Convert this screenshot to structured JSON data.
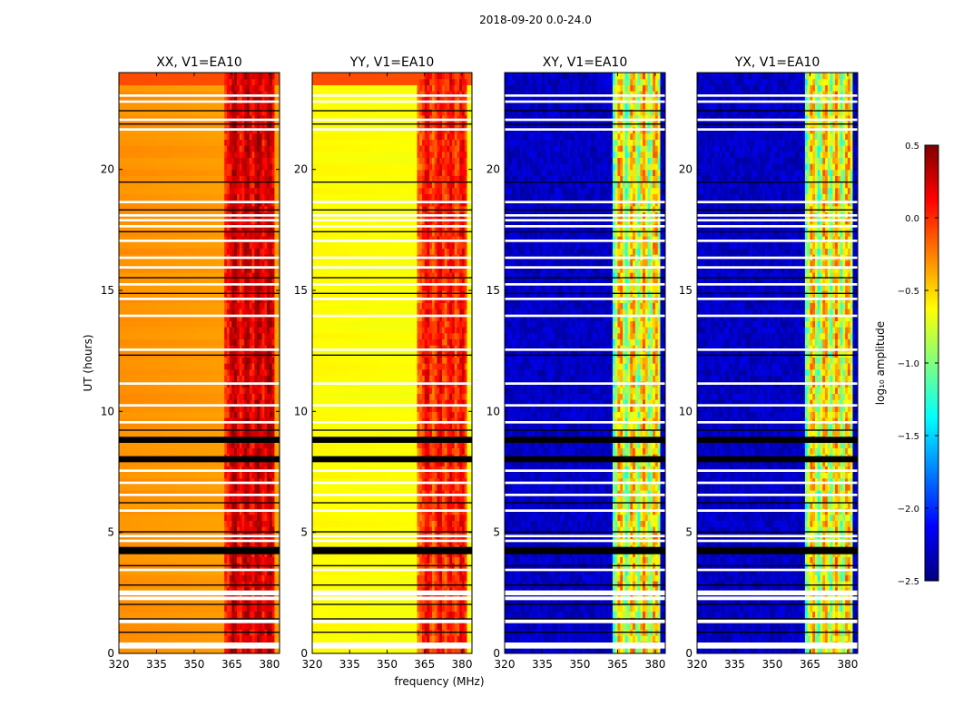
{
  "figure": {
    "suptitle": "2018-09-20 0.0-24.0",
    "xlabel": "frequency (MHz)",
    "ylabel": "UT (hours)"
  },
  "chart_data": [
    {
      "type": "heatmap",
      "title": "XX, V1=EA10",
      "style": "parallel",
      "x_ticks": [
        "320",
        "335",
        "350",
        "365",
        "380"
      ],
      "x_tick_values": [
        320,
        335,
        350,
        365,
        380
      ],
      "xlim": [
        320,
        384
      ],
      "y_ticks": [
        "0",
        "5",
        "10",
        "15",
        "20"
      ],
      "y_tick_values": [
        0,
        5,
        10,
        15,
        20
      ],
      "ylim": [
        0,
        24
      ]
    },
    {
      "type": "heatmap",
      "title": "YY, V1=EA10",
      "style": "parallel",
      "x_ticks": [
        "320",
        "335",
        "350",
        "365",
        "380"
      ],
      "x_tick_values": [
        320,
        335,
        350,
        365,
        380
      ],
      "xlim": [
        320,
        384
      ],
      "y_ticks": [
        "0",
        "5",
        "10",
        "15",
        "20"
      ],
      "y_tick_values": [
        0,
        5,
        10,
        15,
        20
      ],
      "ylim": [
        0,
        24
      ]
    },
    {
      "type": "heatmap",
      "title": "XY, V1=EA10",
      "style": "cross",
      "x_ticks": [
        "320",
        "335",
        "350",
        "365",
        "380"
      ],
      "x_tick_values": [
        320,
        335,
        350,
        365,
        380
      ],
      "xlim": [
        320,
        384
      ],
      "y_ticks": [
        "0",
        "5",
        "10",
        "15",
        "20"
      ],
      "y_tick_values": [
        0,
        5,
        10,
        15,
        20
      ],
      "ylim": [
        0,
        24
      ]
    },
    {
      "type": "heatmap",
      "title": "YX, V1=EA10",
      "style": "cross",
      "x_ticks": [
        "320",
        "335",
        "350",
        "365",
        "380"
      ],
      "x_tick_values": [
        320,
        335,
        350,
        365,
        380
      ],
      "xlim": [
        320,
        384
      ],
      "y_ticks": [
        "0",
        "5",
        "10",
        "15",
        "20"
      ],
      "y_tick_values": [
        0,
        5,
        10,
        15,
        20
      ],
      "ylim": [
        0,
        24
      ]
    }
  ],
  "colorbar": {
    "label": "log₁₀ amplitude",
    "range": [
      -2.5,
      0.5
    ],
    "ticks": [
      "0.5",
      "0.0",
      "−0.5",
      "−1.0",
      "−1.5",
      "−2.0",
      "−2.5"
    ],
    "tick_values": [
      0.5,
      0.0,
      -0.5,
      -1.0,
      -1.5,
      -2.0,
      -2.5
    ],
    "colormap": "jet",
    "cmap_colors": [
      "#00007f",
      "#0000ff",
      "#007fff",
      "#00ffff",
      "#7fff7f",
      "#ffff00",
      "#ff7f00",
      "#ff0000",
      "#7f0000"
    ]
  },
  "flag_bands": {
    "black": [
      [
        0.85,
        0.9
      ],
      [
        1.4,
        1.45
      ],
      [
        2.0,
        2.05
      ],
      [
        2.8,
        2.85
      ],
      [
        3.6,
        3.65
      ],
      [
        4.1,
        4.4
      ],
      [
        5.0,
        5.05
      ],
      [
        6.2,
        6.25
      ],
      [
        7.9,
        8.15
      ],
      [
        8.7,
        8.95
      ],
      [
        9.2,
        9.25
      ],
      [
        12.3,
        12.35
      ],
      [
        14.85,
        14.9
      ],
      [
        15.5,
        15.55
      ],
      [
        17.4,
        17.45
      ],
      [
        18.3,
        18.35
      ],
      [
        19.45,
        19.5
      ],
      [
        21.85,
        21.9
      ],
      [
        22.4,
        22.45
      ]
    ],
    "white": [
      [
        0.2,
        0.45
      ],
      [
        1.25,
        1.4
      ],
      [
        2.2,
        2.35
      ],
      [
        2.4,
        2.6
      ],
      [
        3.4,
        3.5
      ],
      [
        4.6,
        4.7
      ],
      [
        4.8,
        4.9
      ],
      [
        5.85,
        5.95
      ],
      [
        6.5,
        6.6
      ],
      [
        7.0,
        7.1
      ],
      [
        7.5,
        7.6
      ],
      [
        9.5,
        9.6
      ],
      [
        10.2,
        10.3
      ],
      [
        11.1,
        11.2
      ],
      [
        12.5,
        12.6
      ],
      [
        13.9,
        14.0
      ],
      [
        14.6,
        14.7
      ],
      [
        15.2,
        15.3
      ],
      [
        15.9,
        16.0
      ],
      [
        16.3,
        16.4
      ],
      [
        17.0,
        17.1
      ],
      [
        17.6,
        17.7
      ],
      [
        17.85,
        17.95
      ],
      [
        18.05,
        18.15
      ],
      [
        18.6,
        18.7
      ],
      [
        21.6,
        21.7
      ],
      [
        22.0,
        22.1
      ],
      [
        22.75,
        22.85
      ],
      [
        23.0,
        23.1
      ]
    ]
  }
}
